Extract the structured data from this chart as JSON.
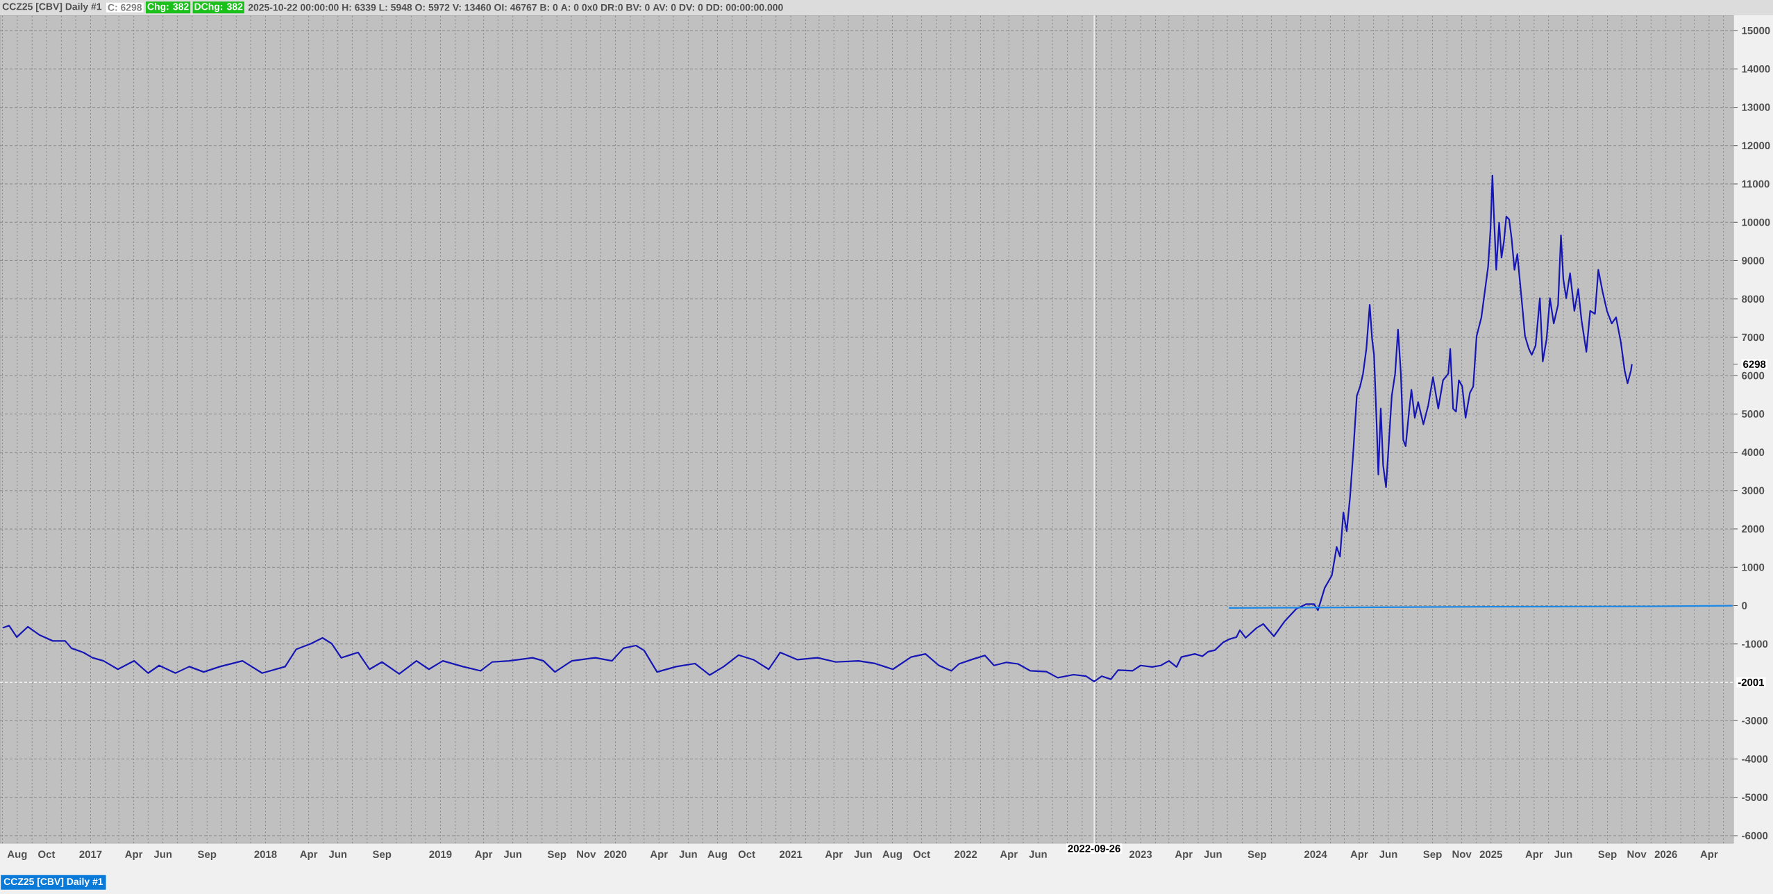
{
  "chart_data": {
    "type": "line",
    "title": "CCZ25 [CBV]  Daily #1",
    "annotations": [
      "C: 6298",
      "Chg: 382",
      "DChg: 382",
      "2025-10-22 00:00:00 H: 6339 L: 5948 O: 5972 V: 13460 OI: 46767 B: 0 A: 0 0x0 DR:0 BV: 0 AV: 0 DV: 0 DD: 00:00:00.000",
      "CCZ25 [CBV]  Daily #1"
    ],
    "xlim": [
      "2016-06-26",
      "2026-05-22"
    ],
    "ylim": [
      -6200,
      15400
    ],
    "yticks": [
      -6000,
      -5000,
      -4000,
      -3000,
      -1000,
      0,
      1000,
      2000,
      3000,
      4000,
      5000,
      6000,
      7000,
      8000,
      9000,
      10000,
      11000,
      12000,
      13000,
      14000,
      15000,
      {
        "value": 6298,
        "label": "6298"
      }
    ],
    "xticks": [
      {
        "value": "2016-07-01",
        "label": null
      },
      {
        "value": "2016-08-01",
        "label": "Aug"
      },
      {
        "value": "2016-09-01",
        "label": null
      },
      {
        "value": "2016-10-01",
        "label": "Oct"
      },
      {
        "value": "2016-11-01",
        "label": null
      },
      {
        "value": "2016-12-01",
        "label": null
      },
      {
        "value": "2017-01-01",
        "label": "2017"
      },
      {
        "value": "2017-02-01",
        "label": null
      },
      {
        "value": "2017-03-01",
        "label": null
      },
      {
        "value": "2017-04-01",
        "label": "Apr"
      },
      {
        "value": "2017-05-01",
        "label": null
      },
      {
        "value": "2017-06-01",
        "label": "Jun"
      },
      {
        "value": "2017-07-01",
        "label": null
      },
      {
        "value": "2017-08-01",
        "label": null
      },
      {
        "value": "2017-09-01",
        "label": "Sep"
      },
      {
        "value": "2017-10-01",
        "label": null
      },
      {
        "value": "2017-11-01",
        "label": null
      },
      {
        "value": "2017-12-01",
        "label": null
      },
      {
        "value": "2018-01-01",
        "label": "2018"
      },
      {
        "value": "2018-02-01",
        "label": null
      },
      {
        "value": "2018-03-01",
        "label": null
      },
      {
        "value": "2018-04-01",
        "label": "Apr"
      },
      {
        "value": "2018-05-01",
        "label": null
      },
      {
        "value": "2018-06-01",
        "label": "Jun"
      },
      {
        "value": "2018-07-01",
        "label": null
      },
      {
        "value": "2018-08-01",
        "label": null
      },
      {
        "value": "2018-09-01",
        "label": "Sep"
      },
      {
        "value": "2018-10-01",
        "label": null
      },
      {
        "value": "2018-11-01",
        "label": null
      },
      {
        "value": "2018-12-01",
        "label": null
      },
      {
        "value": "2019-01-01",
        "label": "2019"
      },
      {
        "value": "2019-02-01",
        "label": null
      },
      {
        "value": "2019-03-01",
        "label": null
      },
      {
        "value": "2019-04-01",
        "label": "Apr"
      },
      {
        "value": "2019-05-01",
        "label": null
      },
      {
        "value": "2019-06-01",
        "label": "Jun"
      },
      {
        "value": "2019-07-01",
        "label": null
      },
      {
        "value": "2019-08-01",
        "label": null
      },
      {
        "value": "2019-09-01",
        "label": "Sep"
      },
      {
        "value": "2019-10-01",
        "label": null
      },
      {
        "value": "2019-11-01",
        "label": "Nov"
      },
      {
        "value": "2019-12-01",
        "label": null
      },
      {
        "value": "2020-01-01",
        "label": "2020"
      },
      {
        "value": "2020-02-01",
        "label": null
      },
      {
        "value": "2020-03-01",
        "label": null
      },
      {
        "value": "2020-04-01",
        "label": "Apr"
      },
      {
        "value": "2020-05-01",
        "label": null
      },
      {
        "value": "2020-06-01",
        "label": "Jun"
      },
      {
        "value": "2020-07-01",
        "label": null
      },
      {
        "value": "2020-08-01",
        "label": "Aug"
      },
      {
        "value": "2020-09-01",
        "label": null
      },
      {
        "value": "2020-10-01",
        "label": "Oct"
      },
      {
        "value": "2020-11-01",
        "label": null
      },
      {
        "value": "2020-12-01",
        "label": null
      },
      {
        "value": "2021-01-01",
        "label": "2021"
      },
      {
        "value": "2021-02-01",
        "label": null
      },
      {
        "value": "2021-03-01",
        "label": null
      },
      {
        "value": "2021-04-01",
        "label": "Apr"
      },
      {
        "value": "2021-05-01",
        "label": null
      },
      {
        "value": "2021-06-01",
        "label": "Jun"
      },
      {
        "value": "2021-07-01",
        "label": null
      },
      {
        "value": "2021-08-01",
        "label": "Aug"
      },
      {
        "value": "2021-09-01",
        "label": null
      },
      {
        "value": "2021-10-01",
        "label": "Oct"
      },
      {
        "value": "2021-11-01",
        "label": null
      },
      {
        "value": "2021-12-01",
        "label": null
      },
      {
        "value": "2022-01-01",
        "label": "2022"
      },
      {
        "value": "2022-02-01",
        "label": null
      },
      {
        "value": "2022-03-01",
        "label": null
      },
      {
        "value": "2022-04-01",
        "label": "Apr"
      },
      {
        "value": "2022-05-01",
        "label": null
      },
      {
        "value": "2022-06-01",
        "label": "Jun"
      },
      {
        "value": "2022-07-01",
        "label": null
      },
      {
        "value": "2022-08-01",
        "label": null
      },
      {
        "value": "2022-09-01",
        "label": null
      },
      {
        "value": "2022-10-01",
        "label": null
      },
      {
        "value": "2022-11-01",
        "label": null
      },
      {
        "value": "2022-12-01",
        "label": null
      },
      {
        "value": "2023-01-01",
        "label": "2023"
      },
      {
        "value": "2023-02-01",
        "label": null
      },
      {
        "value": "2023-03-01",
        "label": null
      },
      {
        "value": "2023-04-01",
        "label": "Apr"
      },
      {
        "value": "2023-05-01",
        "label": null
      },
      {
        "value": "2023-06-01",
        "label": "Jun"
      },
      {
        "value": "2023-07-01",
        "label": null
      },
      {
        "value": "2023-08-01",
        "label": null
      },
      {
        "value": "2023-09-01",
        "label": "Sep"
      },
      {
        "value": "2023-10-01",
        "label": null
      },
      {
        "value": "2023-11-01",
        "label": null
      },
      {
        "value": "2023-12-01",
        "label": null
      },
      {
        "value": "2024-01-01",
        "label": "2024"
      },
      {
        "value": "2024-02-01",
        "label": null
      },
      {
        "value": "2024-03-01",
        "label": null
      },
      {
        "value": "2024-04-01",
        "label": "Apr"
      },
      {
        "value": "2024-05-01",
        "label": null
      },
      {
        "value": "2024-06-01",
        "label": "Jun"
      },
      {
        "value": "2024-07-01",
        "label": null
      },
      {
        "value": "2024-08-01",
        "label": null
      },
      {
        "value": "2024-09-01",
        "label": "Sep"
      },
      {
        "value": "2024-10-01",
        "label": null
      },
      {
        "value": "2024-11-01",
        "label": "Nov"
      },
      {
        "value": "2024-12-01",
        "label": null
      },
      {
        "value": "2025-01-01",
        "label": "2025"
      },
      {
        "value": "2025-02-01",
        "label": null
      },
      {
        "value": "2025-03-01",
        "label": null
      },
      {
        "value": "2025-04-01",
        "label": "Apr"
      },
      {
        "value": "2025-05-01",
        "label": null
      },
      {
        "value": "2025-06-01",
        "label": "Jun"
      },
      {
        "value": "2025-07-01",
        "label": null
      },
      {
        "value": "2025-08-01",
        "label": null
      },
      {
        "value": "2025-09-01",
        "label": "Sep"
      },
      {
        "value": "2025-10-01",
        "label": null
      },
      {
        "value": "2025-11-01",
        "label": "Nov"
      },
      {
        "value": "2025-12-01",
        "label": null
      },
      {
        "value": "2026-01-01",
        "label": "2026"
      },
      {
        "value": "2026-02-01",
        "label": null
      },
      {
        "value": "2026-03-01",
        "label": null
      },
      {
        "value": "2026-04-01",
        "label": "Apr"
      },
      {
        "value": "2026-05-01",
        "label": null
      }
    ],
    "grid": true,
    "ref_lines": [
      {
        "axis": "x",
        "value": "2022-09-26",
        "label": "2022-09-26",
        "color": "#ffffff"
      },
      {
        "axis": "y",
        "value": -2001,
        "label": "-2001",
        "color": "#ffffff",
        "line_style": "dashed"
      }
    ],
    "series": [
      {
        "color": "#1616b4",
        "x": [
          "2016-07-02",
          "2016-07-15",
          "2016-07-31",
          "2016-08-23",
          "2016-09-17",
          "2016-10-14",
          "2016-11-09",
          "2016-11-22",
          "2016-12-17",
          "2017-01-05",
          "2017-01-28",
          "2017-02-27",
          "2017-04-02",
          "2017-05-01",
          "2017-05-24",
          "2017-06-27",
          "2017-07-26",
          "2017-08-25",
          "2017-09-28",
          "2017-11-14",
          "2017-12-25",
          "2018-02-11",
          "2018-03-06",
          "2018-04-06",
          "2018-04-30",
          "2018-05-19",
          "2018-06-08",
          "2018-07-13",
          "2018-08-06",
          "2018-09-01",
          "2018-10-07",
          "2018-11-12",
          "2018-12-08",
          "2019-01-06",
          "2019-02-17",
          "2019-03-26",
          "2019-04-19",
          "2019-05-24",
          "2019-07-12",
          "2019-08-04",
          "2019-08-28",
          "2019-10-02",
          "2019-11-20",
          "2019-12-25",
          "2020-01-18",
          "2020-02-13",
          "2020-03-01",
          "2020-03-28",
          "2020-05-07",
          "2020-06-15",
          "2020-07-16",
          "2020-08-14",
          "2020-09-14",
          "2020-10-15",
          "2020-11-16",
          "2020-12-10",
          "2021-01-15",
          "2021-02-26",
          "2021-04-05",
          "2021-05-22",
          "2021-06-26",
          "2021-08-02",
          "2021-09-09",
          "2021-10-09",
          "2021-11-06",
          "2021-12-02",
          "2021-12-18",
          "2022-01-15",
          "2022-02-10",
          "2022-03-01",
          "2022-03-27",
          "2022-04-20",
          "2022-05-16",
          "2022-06-18",
          "2022-07-12",
          "2022-08-14",
          "2022-09-09",
          "2022-09-26",
          "2022-10-12",
          "2022-10-31",
          "2022-11-15",
          "2022-12-15",
          "2023-01-01",
          "2023-01-25",
          "2023-02-12",
          "2023-03-01",
          "2023-03-17",
          "2023-03-27",
          "2023-04-24",
          "2023-05-10",
          "2023-05-22",
          "2023-06-05",
          "2023-06-22",
          "2023-07-04",
          "2023-07-20",
          "2023-07-27",
          "2023-08-08",
          "2023-08-31",
          "2023-09-14",
          "2023-10-06",
          "2023-10-29",
          "2023-11-22",
          "2023-12-13",
          "2023-12-29",
          "2024-01-06",
          "2024-01-20",
          "2024-02-04",
          "2024-02-14",
          "2024-02-21",
          "2024-02-28",
          "2024-03-06",
          "2024-03-13",
          "2024-03-20",
          "2024-03-27",
          "2024-04-03",
          "2024-04-09",
          "2024-04-16",
          "2024-04-23",
          "2024-04-28",
          "2024-05-02",
          "2024-05-07",
          "2024-05-11",
          "2024-05-16",
          "2024-05-21",
          "2024-05-27",
          "2024-06-01",
          "2024-06-08",
          "2024-06-15",
          "2024-06-21",
          "2024-06-27",
          "2024-07-02",
          "2024-07-07",
          "2024-07-14",
          "2024-07-19",
          "2024-07-26",
          "2024-08-02",
          "2024-08-13",
          "2024-08-23",
          "2024-09-02",
          "2024-09-13",
          "2024-09-23",
          "2024-10-04",
          "2024-10-08",
          "2024-10-14",
          "2024-10-20",
          "2024-10-26",
          "2024-11-02",
          "2024-11-09",
          "2024-11-18",
          "2024-11-25",
          "2024-12-02",
          "2024-12-12",
          "2024-12-19",
          "2024-12-26",
          "2024-12-31",
          "2025-01-04",
          "2025-01-07",
          "2025-01-12",
          "2025-01-18",
          "2025-01-23",
          "2025-01-28",
          "2025-02-02",
          "2025-02-08",
          "2025-02-13",
          "2025-02-19",
          "2025-02-25",
          "2025-03-02",
          "2025-03-07",
          "2025-03-13",
          "2025-03-21",
          "2025-03-27",
          "2025-04-04",
          "2025-04-13",
          "2025-04-19",
          "2025-04-27",
          "2025-05-04",
          "2025-05-12",
          "2025-05-21",
          "2025-05-27",
          "2025-06-01",
          "2025-06-07",
          "2025-06-15",
          "2025-06-24",
          "2025-07-02",
          "2025-07-09",
          "2025-07-19",
          "2025-07-27",
          "2025-08-06",
          "2025-08-13",
          "2025-08-22",
          "2025-08-31",
          "2025-09-10",
          "2025-09-19",
          "2025-09-29",
          "2025-10-07",
          "2025-10-13",
          "2025-10-20",
          "2025-10-22"
        ],
        "values": [
          -580,
          -520,
          -820,
          -550,
          -770,
          -920,
          -920,
          -1110,
          -1220,
          -1360,
          -1440,
          -1660,
          -1440,
          -1760,
          -1560,
          -1760,
          -1590,
          -1730,
          -1590,
          -1440,
          -1760,
          -1590,
          -1140,
          -990,
          -840,
          -990,
          -1360,
          -1220,
          -1660,
          -1470,
          -1780,
          -1440,
          -1660,
          -1440,
          -1590,
          -1700,
          -1470,
          -1440,
          -1360,
          -1440,
          -1730,
          -1440,
          -1360,
          -1440,
          -1110,
          -1040,
          -1170,
          -1730,
          -1590,
          -1510,
          -1810,
          -1590,
          -1290,
          -1410,
          -1660,
          -1220,
          -1410,
          -1360,
          -1470,
          -1440,
          -1510,
          -1660,
          -1340,
          -1260,
          -1560,
          -1700,
          -1520,
          -1400,
          -1300,
          -1560,
          -1480,
          -1520,
          -1700,
          -1720,
          -1880,
          -1800,
          -1840,
          -1980,
          -1840,
          -1920,
          -1680,
          -1700,
          -1560,
          -1600,
          -1560,
          -1440,
          -1600,
          -1340,
          -1260,
          -1320,
          -1200,
          -1160,
          -960,
          -880,
          -820,
          -640,
          -840,
          -580,
          -480,
          -800,
          -400,
          -80,
          40,
          40,
          -120,
          460,
          790,
          1530,
          1280,
          2430,
          1940,
          2840,
          4070,
          5470,
          5720,
          6050,
          6700,
          7850,
          6950,
          6540,
          4900,
          3420,
          5140,
          3660,
          3090,
          4070,
          5470,
          6050,
          7200,
          6050,
          4320,
          4160,
          5060,
          5630,
          4900,
          5310,
          4730,
          5220,
          5960,
          5140,
          5880,
          6050,
          6700,
          5140,
          5060,
          5880,
          5720,
          4900,
          5550,
          5720,
          7030,
          7520,
          8180,
          8840,
          9820,
          11220,
          10230,
          8760,
          9990,
          9080,
          9500,
          10150,
          10070,
          9580,
          8760,
          9170,
          8510,
          7850,
          7030,
          6700,
          6540,
          6780,
          8020,
          6370,
          6950,
          8020,
          7360,
          7850,
          9660,
          8510,
          8020,
          8670,
          7690,
          8260,
          7440,
          6620,
          7690,
          7610,
          8760,
          8180,
          7690,
          7360,
          7520,
          6870,
          6130,
          5800,
          6130,
          6300
        ]
      },
      {
        "color": "#1e88e5",
        "x": [
          "2023-07-04",
          "2024-12-26",
          "2025-11-28",
          "2026-05-20"
        ],
        "values": [
          -60,
          -30,
          -20,
          0
        ]
      }
    ]
  }
}
